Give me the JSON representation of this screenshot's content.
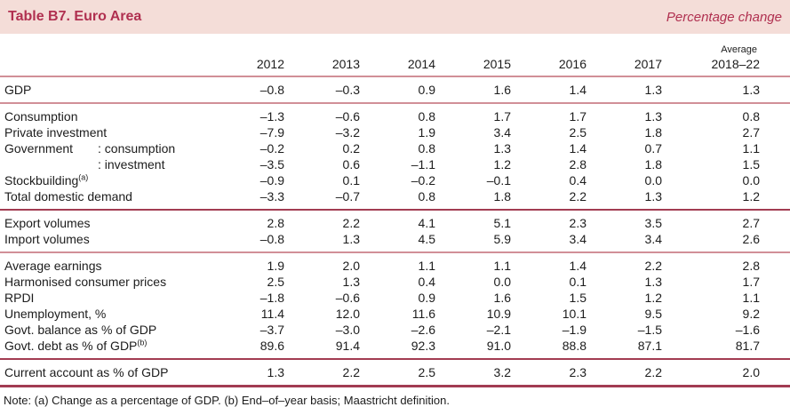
{
  "banner": {
    "title": "Table B7. Euro Area",
    "subtitle": "Percentage change"
  },
  "colors": {
    "accent": "#b03050",
    "banner_background": "#f4ddd8",
    "rule_pink": "#d18f97",
    "rule_dark": "#a23c52",
    "text": "#1c1c1c"
  },
  "table": {
    "year_columns": [
      "2012",
      "2013",
      "2014",
      "2015",
      "2016",
      "2017"
    ],
    "average_column": {
      "line1": "Average",
      "line2": "2018–22"
    },
    "groups": [
      {
        "divider": "pink",
        "rows": [
          {
            "label": "GDP",
            "values": [
              "–0.8",
              "–0.3",
              "0.9",
              "1.6",
              "1.4",
              "1.3",
              "1.3"
            ]
          }
        ]
      },
      {
        "divider": "dark",
        "rows": [
          {
            "label": "Consumption",
            "values": [
              "–1.3",
              "–0.6",
              "0.8",
              "1.7",
              "1.7",
              "1.3",
              "0.8"
            ]
          },
          {
            "label": "Private investment",
            "values": [
              "–7.9",
              "–3.2",
              "1.9",
              "3.4",
              "2.5",
              "1.8",
              "2.7"
            ]
          },
          {
            "label": "Government",
            "label2": ": consumption",
            "values": [
              "–0.2",
              "0.2",
              "0.8",
              "1.3",
              "1.4",
              "0.7",
              "1.1"
            ]
          },
          {
            "label": "",
            "label2": ": investment",
            "values": [
              "–3.5",
              "0.6",
              "–1.1",
              "1.2",
              "2.8",
              "1.8",
              "1.5"
            ]
          },
          {
            "label": "Stockbuilding",
            "sup": "(a)",
            "values": [
              "–0.9",
              "0.1",
              "–0.2",
              "–0.1",
              "0.4",
              "0.0",
              "0.0"
            ]
          },
          {
            "label": "Total domestic demand",
            "values": [
              "–3.3",
              "–0.7",
              "0.8",
              "1.8",
              "2.2",
              "1.3",
              "1.2"
            ]
          }
        ]
      },
      {
        "divider": "pink",
        "rows": [
          {
            "label": "Export volumes",
            "values": [
              "2.8",
              "2.2",
              "4.1",
              "5.1",
              "2.3",
              "3.5",
              "2.7"
            ]
          },
          {
            "label": "Import volumes",
            "values": [
              "–0.8",
              "1.3",
              "4.5",
              "5.9",
              "3.4",
              "3.4",
              "2.6"
            ]
          }
        ]
      },
      {
        "divider": "dark",
        "rows": [
          {
            "label": "Average earnings",
            "values": [
              "1.9",
              "2.0",
              "1.1",
              "1.1",
              "1.4",
              "2.2",
              "2.8"
            ]
          },
          {
            "label": "Harmonised consumer prices",
            "values": [
              "2.5",
              "1.3",
              "0.4",
              "0.0",
              "0.1",
              "1.3",
              "1.7"
            ]
          },
          {
            "label": "RPDI",
            "values": [
              "–1.8",
              "–0.6",
              "0.9",
              "1.6",
              "1.5",
              "1.2",
              "1.1"
            ]
          },
          {
            "label": "Unemployment, %",
            "values": [
              "11.4",
              "12.0",
              "11.6",
              "10.9",
              "10.1",
              "9.5",
              "9.2"
            ]
          },
          {
            "label": "Govt. balance as % of GDP",
            "values": [
              "–3.7",
              "–3.0",
              "–2.6",
              "–2.1",
              "–1.9",
              "–1.5",
              "–1.6"
            ]
          },
          {
            "label": "Govt. debt as % of GDP",
            "sup": "(b)",
            "values": [
              "89.6",
              "91.4",
              "92.3",
              "91.0",
              "88.8",
              "87.1",
              "81.7"
            ]
          }
        ]
      },
      {
        "divider": "dark-thick",
        "rows": [
          {
            "label": "Current account as % of GDP",
            "values": [
              "1.3",
              "2.2",
              "2.5",
              "3.2",
              "2.3",
              "2.2",
              "2.0"
            ]
          }
        ]
      }
    ]
  },
  "note": "Note: (a) Change as a percentage of GDP. (b) End–of–year basis; Maastricht definition."
}
